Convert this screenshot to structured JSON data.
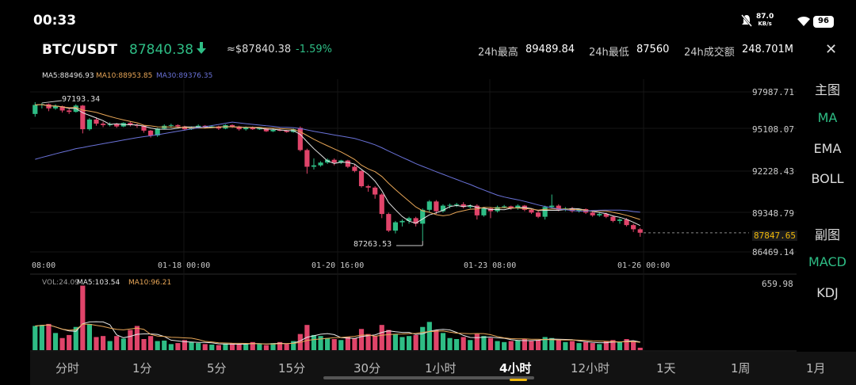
{
  "status": {
    "time": "00:33",
    "net_speed_value": "87.0",
    "net_speed_unit": "KB/s",
    "battery": "96"
  },
  "header": {
    "pair": "BTC/USDT",
    "price": "87840.38",
    "approx_price": "≈$87840.38",
    "change": "-1.59%",
    "stats": [
      {
        "label": "24h最高",
        "value": "89489.84"
      },
      {
        "label": "24h最低",
        "value": "87560"
      },
      {
        "label": "24h成交额",
        "value": "248.701M"
      }
    ]
  },
  "ma_legend": {
    "ma5": "MA5:88496.93",
    "ma10": "MA10:88953.85",
    "ma30": "MA30:89376.35"
  },
  "price_axis": [
    "97987.71",
    "95108.07",
    "92228.43",
    "89348.79",
    "86469.14"
  ],
  "current_price_tag": "87847.65",
  "time_axis": [
    "08:00",
    "01-18 00:00",
    "01-20 16:00",
    "01-23 08:00",
    "01-26 00:00"
  ],
  "annotations": {
    "high": "97193.34",
    "low": "87263.53"
  },
  "volume_legend": {
    "vol": "VOL:24.09",
    "ma5": "MA5:103.54",
    "ma10": "MA10:96.21"
  },
  "volume_axis_max": "659.98",
  "side_menu": {
    "main_title": "主图",
    "main_items": [
      "MA",
      "EMA",
      "BOLL"
    ],
    "sub_title": "副图",
    "sub_items": [
      "MACD",
      "KDJ"
    ]
  },
  "tabs": [
    "分时",
    "1分",
    "5分",
    "15分",
    "30分",
    "1小时",
    "4小时",
    "12小时",
    "1天",
    "1周",
    "1月"
  ],
  "active_tab": "4小时",
  "colors": {
    "up": "#2ebd85",
    "down": "#e0446a",
    "ma5": "#e6e6e6",
    "ma10": "#e8a657",
    "ma30": "#6a72d8"
  },
  "chart_data": {
    "type": "candlestick",
    "price_range": [
      86469.14,
      97987.71
    ],
    "volume_range": [
      0,
      659.98
    ],
    "candles": [
      {
        "o": 96400,
        "c": 97050,
        "h": 97250,
        "l": 96200,
        "v": 240
      },
      {
        "o": 97050,
        "c": 97100,
        "h": 97193,
        "l": 96800,
        "v": 250
      },
      {
        "o": 97100,
        "c": 96800,
        "h": 97150,
        "l": 96600,
        "v": 260
      },
      {
        "o": 96800,
        "c": 96950,
        "h": 97100,
        "l": 96700,
        "v": 170
      },
      {
        "o": 96950,
        "c": 96650,
        "h": 97000,
        "l": 96500,
        "v": 120
      },
      {
        "o": 96650,
        "c": 96550,
        "h": 96800,
        "l": 96400,
        "v": 150
      },
      {
        "o": 96550,
        "c": 97000,
        "h": 97100,
        "l": 96500,
        "v": 230
      },
      {
        "o": 97000,
        "c": 95300,
        "h": 97050,
        "l": 95000,
        "v": 640
      },
      {
        "o": 95300,
        "c": 96000,
        "h": 96100,
        "l": 95200,
        "v": 260
      },
      {
        "o": 96000,
        "c": 95700,
        "h": 96150,
        "l": 95550,
        "v": 130
      },
      {
        "o": 95700,
        "c": 95600,
        "h": 95850,
        "l": 95450,
        "v": 140
      },
      {
        "o": 95600,
        "c": 95650,
        "h": 95800,
        "l": 95500,
        "v": 90
      },
      {
        "o": 95650,
        "c": 95500,
        "h": 95750,
        "l": 95400,
        "v": 140
      },
      {
        "o": 95500,
        "c": 95750,
        "h": 95800,
        "l": 95450,
        "v": 115
      },
      {
        "o": 95750,
        "c": 95600,
        "h": 95850,
        "l": 95500,
        "v": 200
      },
      {
        "o": 95600,
        "c": 95550,
        "h": 95700,
        "l": 95400,
        "v": 240
      },
      {
        "o": 95550,
        "c": 95200,
        "h": 95600,
        "l": 95050,
        "v": 110
      },
      {
        "o": 95200,
        "c": 94850,
        "h": 95250,
        "l": 94700,
        "v": 140
      },
      {
        "o": 94850,
        "c": 95350,
        "h": 95400,
        "l": 94750,
        "v": 90
      },
      {
        "o": 95350,
        "c": 95550,
        "h": 95650,
        "l": 95300,
        "v": 95
      },
      {
        "o": 95550,
        "c": 95600,
        "h": 95700,
        "l": 95400,
        "v": 60
      },
      {
        "o": 95600,
        "c": 95500,
        "h": 95650,
        "l": 95400,
        "v": 70
      },
      {
        "o": 95500,
        "c": 95300,
        "h": 95550,
        "l": 95200,
        "v": 100
      },
      {
        "o": 95300,
        "c": 95400,
        "h": 95500,
        "l": 95250,
        "v": 80
      },
      {
        "o": 95400,
        "c": 95550,
        "h": 95650,
        "l": 95350,
        "v": 70
      },
      {
        "o": 95550,
        "c": 95450,
        "h": 95600,
        "l": 95350,
        "v": 60
      },
      {
        "o": 95450,
        "c": 95500,
        "h": 95600,
        "l": 95400,
        "v": 55
      },
      {
        "o": 95500,
        "c": 95350,
        "h": 95550,
        "l": 95250,
        "v": 50
      },
      {
        "o": 95350,
        "c": 95600,
        "h": 95650,
        "l": 95300,
        "v": 65
      },
      {
        "o": 95600,
        "c": 95500,
        "h": 95650,
        "l": 95400,
        "v": 70
      },
      {
        "o": 95500,
        "c": 95300,
        "h": 95550,
        "l": 95200,
        "v": 55
      },
      {
        "o": 95300,
        "c": 95450,
        "h": 95500,
        "l": 95200,
        "v": 60
      },
      {
        "o": 95450,
        "c": 95300,
        "h": 95500,
        "l": 95250,
        "v": 80
      },
      {
        "o": 95300,
        "c": 95350,
        "h": 95400,
        "l": 95250,
        "v": 60
      },
      {
        "o": 95350,
        "c": 95150,
        "h": 95400,
        "l": 95100,
        "v": 50
      },
      {
        "o": 95150,
        "c": 95250,
        "h": 95350,
        "l": 95100,
        "v": 70
      },
      {
        "o": 95250,
        "c": 95200,
        "h": 95350,
        "l": 95150,
        "v": 80
      },
      {
        "o": 95200,
        "c": 95100,
        "h": 95250,
        "l": 95050,
        "v": 60
      },
      {
        "o": 95100,
        "c": 95300,
        "h": 95350,
        "l": 95050,
        "v": 90
      },
      {
        "o": 95400,
        "c": 93800,
        "h": 95500,
        "l": 93700,
        "v": 160
      },
      {
        "o": 93800,
        "c": 92600,
        "h": 93900,
        "l": 92100,
        "v": 250
      },
      {
        "o": 92600,
        "c": 92700,
        "h": 93200,
        "l": 92400,
        "v": 150
      },
      {
        "o": 92700,
        "c": 92900,
        "h": 93000,
        "l": 92600,
        "v": 140
      },
      {
        "o": 92900,
        "c": 93100,
        "h": 93200,
        "l": 92800,
        "v": 120
      },
      {
        "o": 93100,
        "c": 92900,
        "h": 93200,
        "l": 92700,
        "v": 110
      },
      {
        "o": 92900,
        "c": 93050,
        "h": 93100,
        "l": 92800,
        "v": 100
      },
      {
        "o": 93050,
        "c": 92600,
        "h": 93100,
        "l": 92500,
        "v": 130
      },
      {
        "o": 92600,
        "c": 92300,
        "h": 92800,
        "l": 92200,
        "v": 120
      },
      {
        "o": 92300,
        "c": 91200,
        "h": 92350,
        "l": 91100,
        "v": 210
      },
      {
        "o": 91200,
        "c": 91100,
        "h": 91300,
        "l": 90800,
        "v": 160
      },
      {
        "o": 91100,
        "c": 90600,
        "h": 91200,
        "l": 90300,
        "v": 140
      },
      {
        "o": 90600,
        "c": 89200,
        "h": 90700,
        "l": 88900,
        "v": 250
      },
      {
        "o": 89200,
        "c": 88000,
        "h": 89300,
        "l": 87900,
        "v": 200
      },
      {
        "o": 88000,
        "c": 88600,
        "h": 88700,
        "l": 87800,
        "v": 160
      },
      {
        "o": 88600,
        "c": 88700,
        "h": 88800,
        "l": 88300,
        "v": 130
      },
      {
        "o": 88700,
        "c": 88900,
        "h": 89000,
        "l": 88500,
        "v": 140
      },
      {
        "o": 88900,
        "c": 88500,
        "h": 89000,
        "l": 88300,
        "v": 150
      },
      {
        "o": 88500,
        "c": 89500,
        "h": 89600,
        "l": 87263,
        "v": 230
      },
      {
        "o": 89500,
        "c": 90100,
        "h": 90200,
        "l": 89300,
        "v": 280
      },
      {
        "o": 90100,
        "c": 89400,
        "h": 90200,
        "l": 89200,
        "v": 200
      },
      {
        "o": 89400,
        "c": 89800,
        "h": 89900,
        "l": 89300,
        "v": 170
      },
      {
        "o": 89800,
        "c": 89850,
        "h": 89950,
        "l": 89600,
        "v": 120
      },
      {
        "o": 89850,
        "c": 89900,
        "h": 90000,
        "l": 89700,
        "v": 110
      },
      {
        "o": 89900,
        "c": 89700,
        "h": 90050,
        "l": 89600,
        "v": 130
      },
      {
        "o": 89700,
        "c": 89800,
        "h": 89900,
        "l": 89600,
        "v": 100
      },
      {
        "o": 89800,
        "c": 89100,
        "h": 89900,
        "l": 88800,
        "v": 160
      },
      {
        "o": 89100,
        "c": 89600,
        "h": 89700,
        "l": 89000,
        "v": 140
      },
      {
        "o": 89600,
        "c": 89400,
        "h": 89700,
        "l": 88900,
        "v": 120
      },
      {
        "o": 89400,
        "c": 89700,
        "h": 89800,
        "l": 89300,
        "v": 90
      },
      {
        "o": 89700,
        "c": 89750,
        "h": 89850,
        "l": 89600,
        "v": 80
      },
      {
        "o": 89750,
        "c": 89600,
        "h": 89800,
        "l": 89500,
        "v": 90
      },
      {
        "o": 89600,
        "c": 89800,
        "h": 89900,
        "l": 89500,
        "v": 100
      },
      {
        "o": 89800,
        "c": 89500,
        "h": 89850,
        "l": 89400,
        "v": 110
      },
      {
        "o": 89500,
        "c": 89300,
        "h": 89600,
        "l": 89200,
        "v": 90
      },
      {
        "o": 89300,
        "c": 89000,
        "h": 89400,
        "l": 88900,
        "v": 100
      },
      {
        "o": 89000,
        "c": 89700,
        "h": 89800,
        "l": 88800,
        "v": 130
      },
      {
        "o": 89700,
        "c": 89800,
        "h": 90600,
        "l": 89600,
        "v": 120
      },
      {
        "o": 89800,
        "c": 89500,
        "h": 89900,
        "l": 89400,
        "v": 100
      },
      {
        "o": 89500,
        "c": 89600,
        "h": 89700,
        "l": 89400,
        "v": 80
      },
      {
        "o": 89600,
        "c": 89400,
        "h": 89700,
        "l": 89300,
        "v": 90
      },
      {
        "o": 89400,
        "c": 89550,
        "h": 89600,
        "l": 89300,
        "v": 70
      },
      {
        "o": 89550,
        "c": 89300,
        "h": 89600,
        "l": 89200,
        "v": 80
      },
      {
        "o": 89300,
        "c": 89100,
        "h": 89400,
        "l": 89000,
        "v": 70
      },
      {
        "o": 89100,
        "c": 89200,
        "h": 89300,
        "l": 89000,
        "v": 60
      },
      {
        "o": 89200,
        "c": 89000,
        "h": 89300,
        "l": 88900,
        "v": 90
      },
      {
        "o": 89000,
        "c": 88700,
        "h": 89100,
        "l": 88600,
        "v": 100
      },
      {
        "o": 88700,
        "c": 88800,
        "h": 88900,
        "l": 88500,
        "v": 80
      },
      {
        "o": 88800,
        "c": 88400,
        "h": 88900,
        "l": 88300,
        "v": 110
      },
      {
        "o": 88400,
        "c": 88100,
        "h": 88500,
        "l": 87900,
        "v": 90
      },
      {
        "o": 88100,
        "c": 87848,
        "h": 88200,
        "l": 87560,
        "v": 24
      }
    ]
  }
}
